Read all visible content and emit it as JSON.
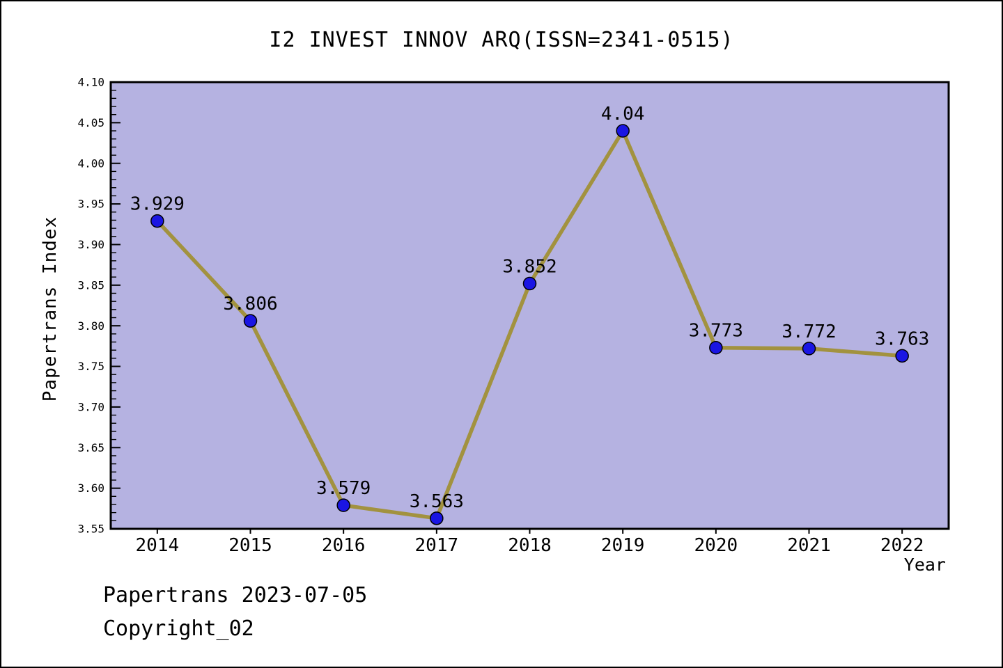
{
  "header": {
    "title": "I2 INVEST INNOV ARQ(ISSN=2341-0515)"
  },
  "footer": {
    "line1": "Papertrans 2023-07-05",
    "line2": "Copyright_02"
  },
  "chart_data": {
    "type": "line",
    "title": "I2 INVEST INNOV ARQ(ISSN=2341-0515)",
    "xlabel": "Year",
    "ylabel": "Papertrans Index",
    "x": [
      2014,
      2015,
      2016,
      2017,
      2018,
      2019,
      2020,
      2021,
      2022
    ],
    "series": [
      {
        "name": "Papertrans Index",
        "values": [
          3.929,
          3.806,
          3.579,
          3.563,
          3.852,
          4.04,
          3.773,
          3.772,
          3.763
        ]
      }
    ],
    "point_labels": [
      "3.929",
      "3.806",
      "3.579",
      "3.563",
      "3.852",
      "4.04",
      "3.773",
      "3.772",
      "3.763"
    ],
    "xlim": [
      2013.5,
      2022.5
    ],
    "ylim": [
      3.55,
      4.1
    ],
    "yticks": [
      3.55,
      3.6,
      3.65,
      3.7,
      3.75,
      3.8,
      3.85,
      3.9,
      3.95,
      4.0,
      4.05,
      4.1
    ],
    "ytick_labels": [
      "3.55",
      "3.60",
      "3.65",
      "3.70",
      "3.75",
      "3.80",
      "3.85",
      "3.90",
      "3.95",
      "4.00",
      "4.05",
      "4.10"
    ],
    "minor_tick_step": 0.01,
    "grid": false,
    "legend": "none",
    "colors": {
      "plot_background": "#b5b2e1",
      "line": "#a2923f",
      "marker_fill": "#1a15e3",
      "marker_edge": "#000000",
      "axis": "#000000",
      "text": "#000000"
    }
  }
}
